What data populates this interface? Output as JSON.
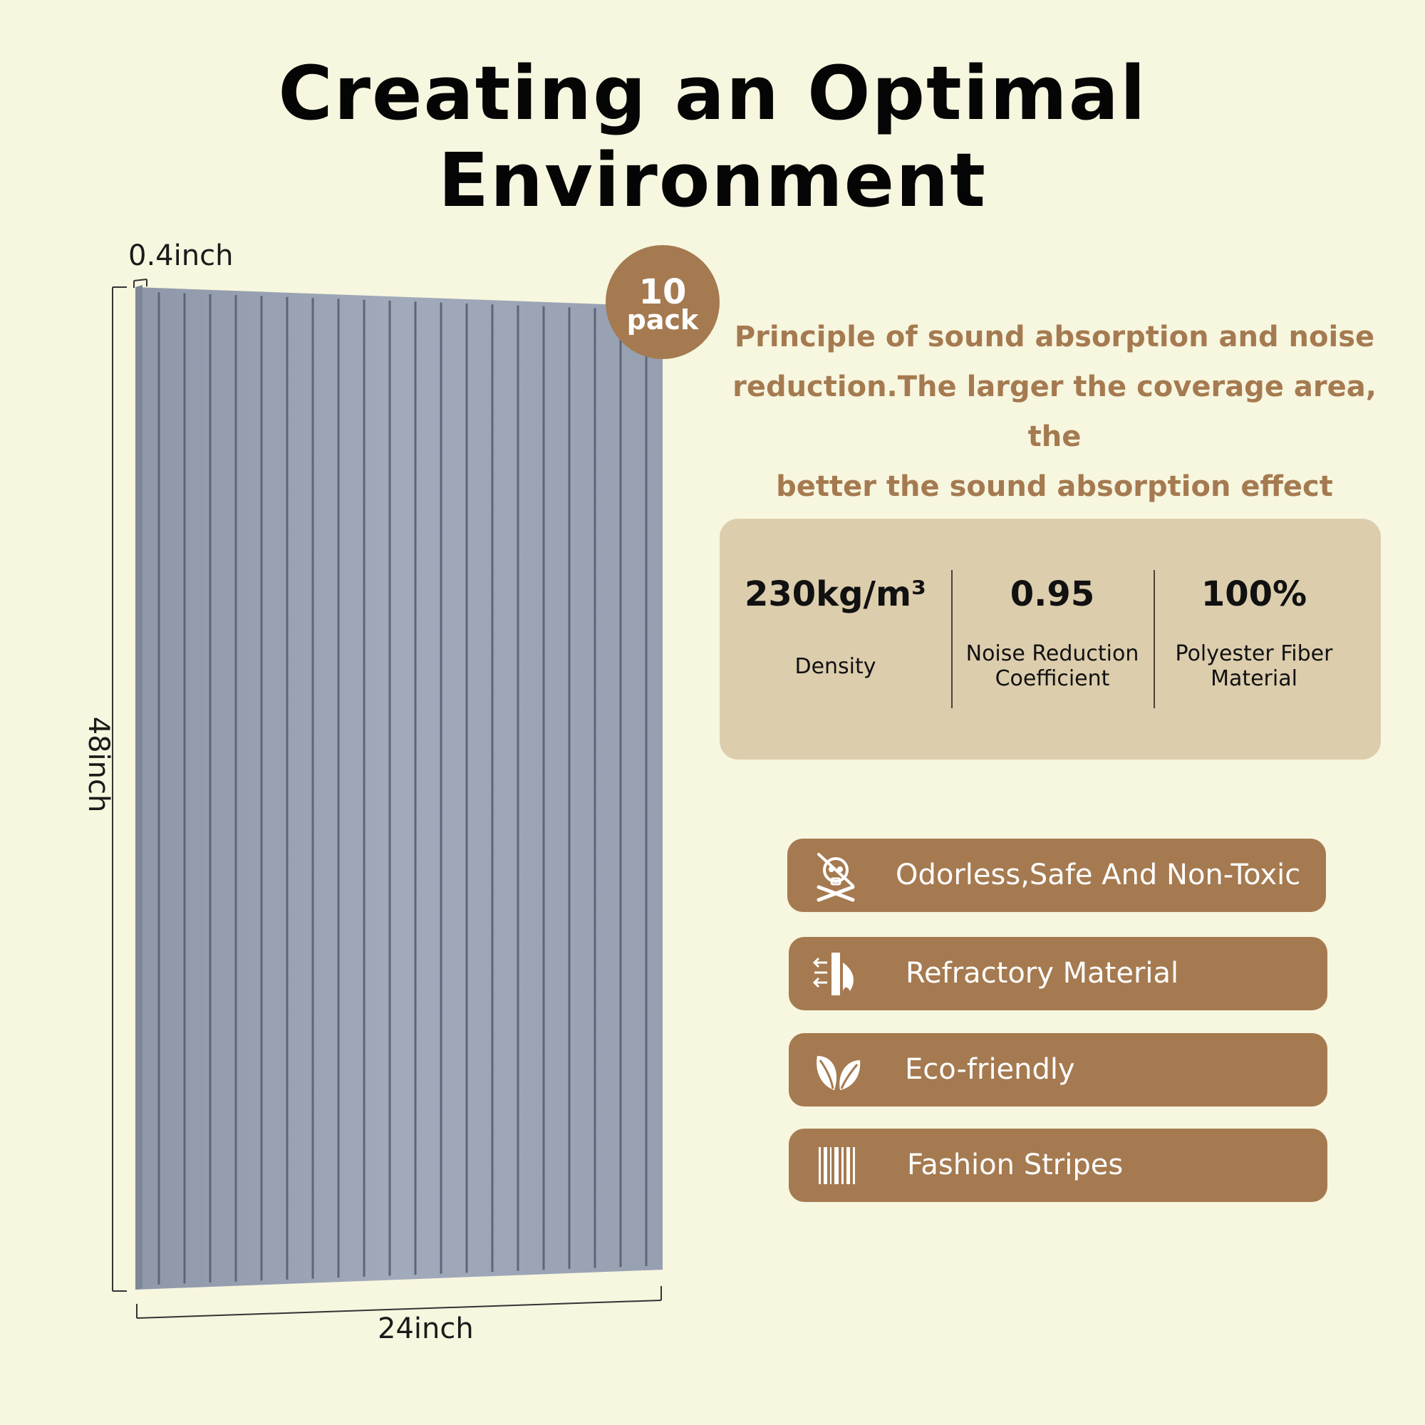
{
  "title": "Creating an Optimal Environment",
  "product": {
    "pack_count": "10",
    "pack_unit": "pack",
    "thickness": "0.4inch",
    "width": "24inch",
    "height": "48inch",
    "panel_color": "#9aa3b3",
    "groove_color": "#5d6676"
  },
  "principle": {
    "line1": "Principle of sound absorption and noise",
    "line2": "reduction.The larger the coverage area, the",
    "line3": "better the sound absorption effect"
  },
  "stats": [
    {
      "value": "230kg/m³",
      "label_line1": "Density",
      "label_line2": ""
    },
    {
      "value": "0.95",
      "label_line1": "Noise Reduction",
      "label_line2": "Coefficient"
    },
    {
      "value": "100%",
      "label_line1": "Polyester Fiber",
      "label_line2": "Material"
    }
  ],
  "features": [
    {
      "icon": "skull-crossed-out-icon",
      "label": "Odorless,Safe And Non-Toxic"
    },
    {
      "icon": "fire-wall-icon",
      "label": "Refractory Material"
    },
    {
      "icon": "leaves-icon",
      "label": "Eco-friendly"
    },
    {
      "icon": "stripes-icon",
      "label": "Fashion Stripes"
    }
  ],
  "colors": {
    "background": "#f7f6df",
    "accent": "#a57a50",
    "stats_box": "#dccdad"
  }
}
